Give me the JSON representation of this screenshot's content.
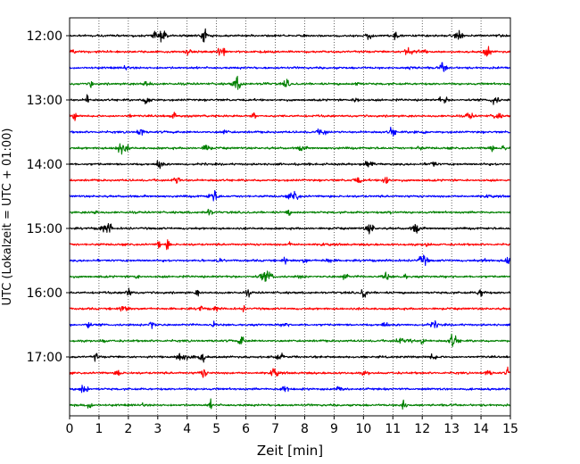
{
  "chart_data": {
    "type": "line",
    "xlabel": "Zeit  [min]",
    "ylabel": "UTC (Lokalzeit = UTC + 01:00)",
    "xlim": [
      0,
      15
    ],
    "xticks": [
      "0",
      "1",
      "2",
      "3",
      "4",
      "5",
      "6",
      "7",
      "8",
      "9",
      "10",
      "11",
      "12",
      "13",
      "14",
      "15"
    ],
    "grid_x": true,
    "row_interval_min": 15,
    "y_tick_labels": [
      {
        "row": 0,
        "label": "12:00"
      },
      {
        "row": 4,
        "label": "13:00"
      },
      {
        "row": 8,
        "label": "14:00"
      },
      {
        "row": 12,
        "label": "15:00"
      },
      {
        "row": 16,
        "label": "16:00"
      },
      {
        "row": 20,
        "label": "17:00"
      }
    ],
    "colors": [
      "#000000",
      "#ff0000",
      "#0000ff",
      "#008000"
    ],
    "traces": [
      {
        "start": "12:00",
        "color": "#000000"
      },
      {
        "start": "12:15",
        "color": "#ff0000"
      },
      {
        "start": "12:30",
        "color": "#0000ff"
      },
      {
        "start": "12:45",
        "color": "#008000"
      },
      {
        "start": "13:00",
        "color": "#000000"
      },
      {
        "start": "13:15",
        "color": "#ff0000"
      },
      {
        "start": "13:30",
        "color": "#0000ff"
      },
      {
        "start": "13:45",
        "color": "#008000"
      },
      {
        "start": "14:00",
        "color": "#000000"
      },
      {
        "start": "14:15",
        "color": "#ff0000"
      },
      {
        "start": "14:30",
        "color": "#0000ff"
      },
      {
        "start": "14:45",
        "color": "#008000"
      },
      {
        "start": "15:00",
        "color": "#000000"
      },
      {
        "start": "15:15",
        "color": "#ff0000"
      },
      {
        "start": "15:30",
        "color": "#0000ff"
      },
      {
        "start": "15:45",
        "color": "#008000"
      },
      {
        "start": "16:00",
        "color": "#000000"
      },
      {
        "start": "16:15",
        "color": "#ff0000"
      },
      {
        "start": "16:30",
        "color": "#0000ff"
      },
      {
        "start": "16:45",
        "color": "#008000"
      },
      {
        "start": "17:00",
        "color": "#000000"
      },
      {
        "start": "17:15",
        "color": "#ff0000"
      },
      {
        "start": "17:30",
        "color": "#0000ff"
      },
      {
        "start": "17:45",
        "color": "#008000"
      }
    ]
  }
}
